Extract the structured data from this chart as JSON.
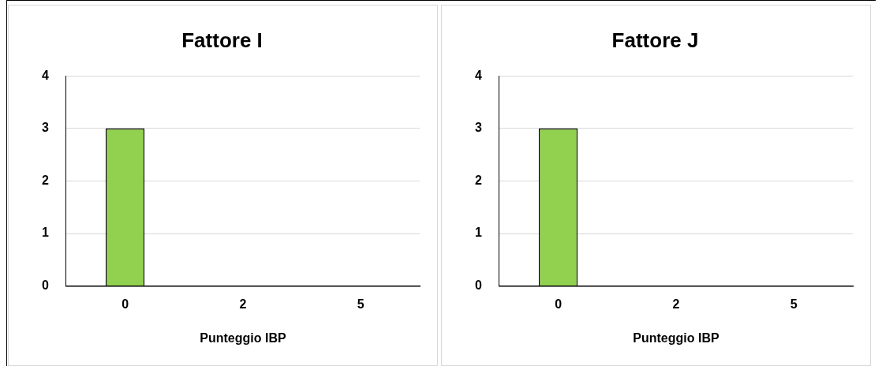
{
  "chart_data": [
    {
      "type": "bar",
      "title": "Fattore I",
      "xlabel": "Punteggio IBP",
      "categories": [
        "0",
        "2",
        "5"
      ],
      "values": [
        3,
        0,
        0
      ],
      "color": "#92d050",
      "ylim": [
        0,
        4
      ],
      "yticks": [
        0,
        1,
        2,
        3,
        4
      ],
      "grid": "y",
      "legend": false
    },
    {
      "type": "bar",
      "title": "Fattore J",
      "xlabel": "Punteggio IBP",
      "categories": [
        "0",
        "2",
        "5"
      ],
      "values": [
        3,
        0,
        0
      ],
      "color": "#92d050",
      "ylim": [
        0,
        4
      ],
      "yticks": [
        0,
        1,
        2,
        3,
        4
      ],
      "grid": "y",
      "legend": false
    }
  ]
}
